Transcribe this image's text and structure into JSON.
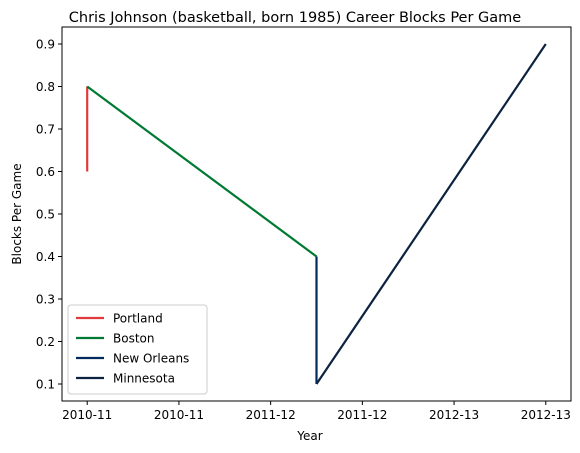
{
  "chart_data": {
    "type": "line",
    "title": "Chris Johnson (basketball, born 1985) Career Blocks Per Game",
    "xlabel": "Year",
    "ylabel": "Blocks Per Game",
    "x_tick_labels": [
      "2010-11",
      "2010-11",
      "2011-12",
      "2011-12",
      "2012-13",
      "2012-13"
    ],
    "y_ticks": [
      0.1,
      0.2,
      0.3,
      0.4,
      0.5,
      0.6,
      0.7,
      0.8,
      0.9
    ],
    "ylim": [
      0.06,
      0.94
    ],
    "xlim": [
      -0.11,
      2.11
    ],
    "grid": false,
    "legend_position": "lower-left",
    "series": [
      {
        "name": "Portland",
        "color": "#e03a3e",
        "points": [
          [
            0,
            0.6
          ],
          [
            0,
            0.8
          ]
        ]
      },
      {
        "name": "Boston",
        "color": "#007a33",
        "points": [
          [
            0,
            0.8
          ],
          [
            1,
            0.4
          ]
        ]
      },
      {
        "name": "New Orleans",
        "color": "#002b5c",
        "points": [
          [
            1,
            0.4
          ],
          [
            1,
            0.1
          ]
        ]
      },
      {
        "name": "Minnesota",
        "color": "#0c2340",
        "points": [
          [
            1,
            0.1
          ],
          [
            2,
            0.9
          ]
        ]
      }
    ]
  }
}
